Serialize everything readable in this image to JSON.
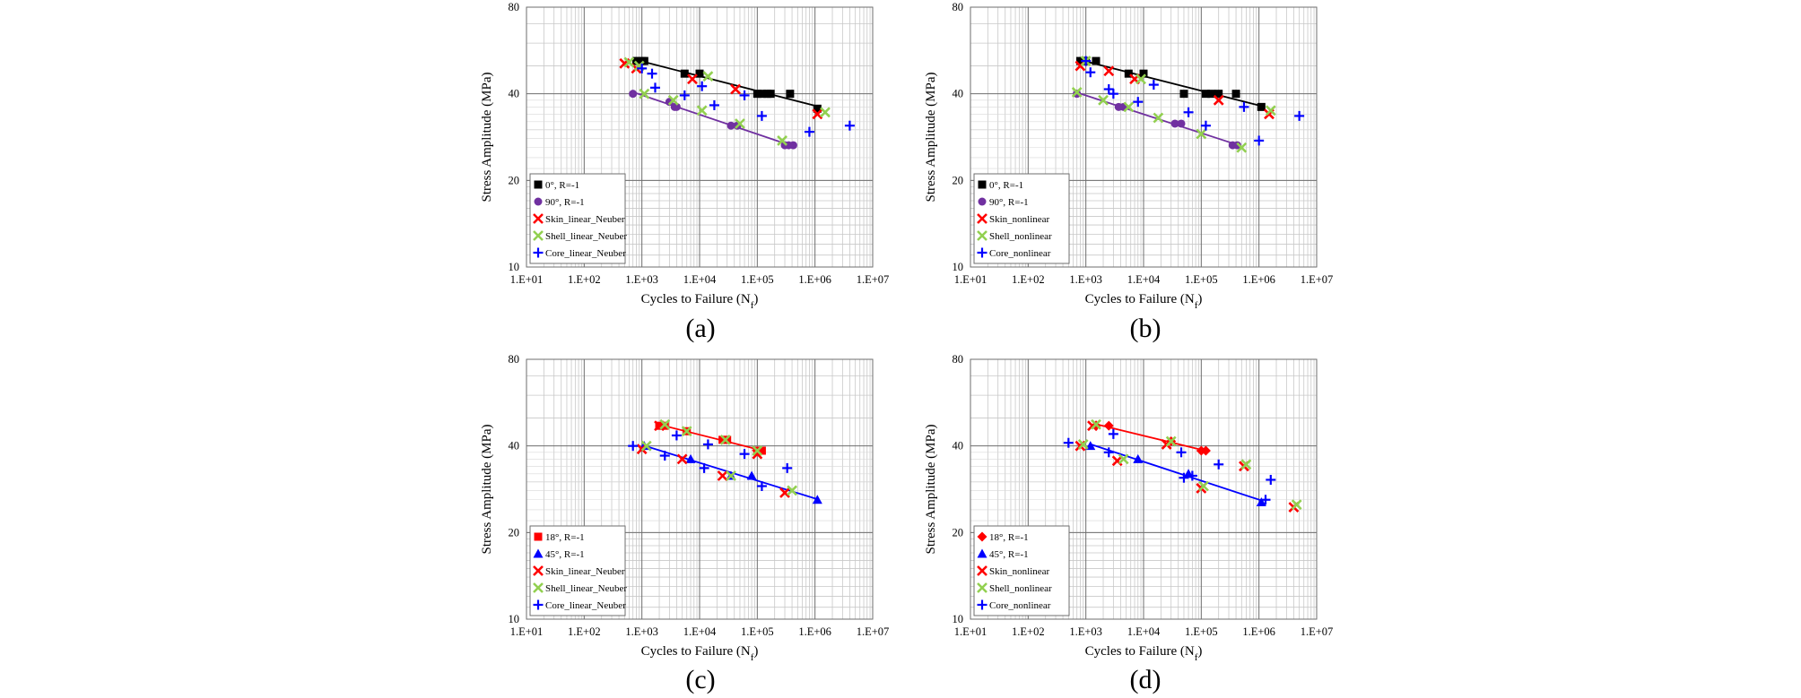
{
  "captions": [
    "(a)",
    "(b)",
    "(c)",
    "(d)"
  ],
  "chart_data": [
    {
      "type": "scatter",
      "panel": "(a)",
      "xlabel": "Cycles  to Failure (N",
      "xlabel_sub": "f",
      "xlabel_end": ")",
      "ylabel": "Stress Amplitude  (MPa)",
      "xscale": "log",
      "yscale": "log",
      "xlim": [
        10,
        10000000
      ],
      "ylim": [
        10,
        80
      ],
      "xticks": [
        10,
        100,
        1000,
        10000,
        100000,
        1000000,
        10000000
      ],
      "xtick_labels": [
        "1.E+01",
        "1.E+02",
        "1.E+03",
        "1.E+04",
        "1.E+05",
        "1.E+06",
        "1.E+07"
      ],
      "yticks": [
        10,
        20,
        40,
        80
      ],
      "ytick_labels": [
        "10",
        "20",
        "40",
        "80"
      ],
      "grid": true,
      "legend_position": "bottom-left",
      "series": [
        {
          "name": "0°, R=-1",
          "marker": "square",
          "color": "#000000",
          "trendline": true,
          "x": [
            800,
            900,
            1000,
            1100,
            5500,
            10000,
            100000,
            120000,
            150000,
            170000,
            370000,
            1100000
          ],
          "y": [
            52,
            52,
            52,
            52,
            47,
            47,
            40,
            40,
            40,
            40,
            40,
            35.5
          ]
        },
        {
          "name": "90°, R=-1",
          "marker": "circle",
          "color": "#7030a0",
          "trendline": true,
          "x": [
            700,
            3000,
            3700,
            4000,
            35000,
            45000,
            300000,
            350000,
            420000
          ],
          "y": [
            40,
            37.5,
            36,
            36,
            31,
            31,
            26.5,
            26.5,
            26.5
          ]
        },
        {
          "name": "Skin_linear_Neuber",
          "marker": "x",
          "color": "#ff0000",
          "trendline": false,
          "x": [
            500,
            800,
            7500,
            42000,
            1100000
          ],
          "y": [
            51,
            49,
            45,
            41.5,
            34
          ]
        },
        {
          "name": "Shell_linear_Neuber",
          "marker": "x",
          "color": "#92d050",
          "trendline": false,
          "x": [
            600,
            900,
            1100,
            3500,
            11000,
            14000,
            50000,
            270000,
            1500000
          ],
          "y": [
            51.5,
            50,
            40,
            38,
            35,
            46,
            31.5,
            27.5,
            34.5
          ]
        },
        {
          "name": "Core_linear_Neuber",
          "marker": "plus",
          "color": "#0000ff",
          "trendline": false,
          "x": [
            1000,
            1500,
            1700,
            5500,
            11000,
            18000,
            60000,
            120000,
            800000,
            4000000
          ],
          "y": [
            49,
            47,
            42,
            39.5,
            42.5,
            36.5,
            39.5,
            33.5,
            29.5,
            31
          ]
        }
      ]
    },
    {
      "type": "scatter",
      "panel": "(b)",
      "xlabel": "Cycles  to Failure (N",
      "xlabel_sub": "f",
      "xlabel_end": ")",
      "ylabel": "Stress Amplitude  (MPa)",
      "xscale": "log",
      "yscale": "log",
      "xlim": [
        10,
        10000000
      ],
      "ylim": [
        10,
        80
      ],
      "xticks": [
        10,
        100,
        1000,
        10000,
        100000,
        1000000,
        10000000
      ],
      "xtick_labels": [
        "1.E+01",
        "1.E+02",
        "1.E+03",
        "1.E+04",
        "1.E+05",
        "1.E+06",
        "1.E+07"
      ],
      "yticks": [
        10,
        20,
        40,
        80
      ],
      "ytick_labels": [
        "10",
        "20",
        "40",
        "80"
      ],
      "grid": true,
      "legend_position": "bottom-left",
      "series": [
        {
          "name": "0°, R=-1",
          "marker": "square",
          "color": "#000000",
          "trendline": true,
          "x": [
            800,
            900,
            1000,
            1500,
            5500,
            10000,
            50000,
            120000,
            150000,
            200000,
            400000,
            1100000
          ],
          "y": [
            52,
            52,
            52,
            52,
            47,
            47,
            40,
            40,
            40,
            40,
            40,
            36
          ]
        },
        {
          "name": "90°, R=-1",
          "marker": "circle",
          "color": "#7030a0",
          "trendline": true,
          "x": [
            700,
            3700,
            4500,
            35000,
            45000,
            350000,
            420000
          ],
          "y": [
            40,
            36,
            36,
            31.5,
            31.5,
            26.5,
            26.5
          ]
        },
        {
          "name": "Skin_nonlinear",
          "marker": "x",
          "color": "#ff0000",
          "trendline": false,
          "x": [
            800,
            2500,
            7000,
            200000,
            1500000
          ],
          "y": [
            50,
            48,
            45,
            38,
            34
          ]
        },
        {
          "name": "Shell_nonlinear",
          "marker": "x",
          "color": "#92d050",
          "trendline": false,
          "x": [
            700,
            1000,
            2000,
            5500,
            9000,
            18000,
            100000,
            500000,
            1600000
          ],
          "y": [
            40.5,
            52,
            38,
            36,
            45,
            33,
            29,
            26,
            35
          ]
        },
        {
          "name": "Core_nonlinear",
          "marker": "plus",
          "color": "#0000ff",
          "trendline": false,
          "x": [
            1000,
            1200,
            2500,
            3000,
            8000,
            15000,
            60000,
            120000,
            550000,
            1000000,
            5000000
          ],
          "y": [
            52,
            47.5,
            41.5,
            40,
            37.5,
            43,
            34.5,
            31,
            36,
            27.5,
            33.5
          ]
        }
      ]
    },
    {
      "type": "scatter",
      "panel": "(c)",
      "xlabel": "Cycles  to Failure (N",
      "xlabel_sub": "f",
      "xlabel_end": ")",
      "ylabel": "Stress Amplitude  (MPa)",
      "xscale": "log",
      "yscale": "log",
      "xlim": [
        10,
        10000000
      ],
      "ylim": [
        10,
        80
      ],
      "xticks": [
        10,
        100,
        1000,
        10000,
        100000,
        1000000,
        10000000
      ],
      "xtick_labels": [
        "1.E+01",
        "1.E+02",
        "1.E+03",
        "1.E+04",
        "1.E+05",
        "1.E+06",
        "1.E+07"
      ],
      "yticks": [
        10,
        20,
        40,
        80
      ],
      "ytick_labels": [
        "10",
        "20",
        "40",
        "80"
      ],
      "grid": true,
      "legend_position": "bottom-left",
      "series": [
        {
          "name": "18°, R=-1",
          "marker": "square",
          "color": "#ff0000",
          "trendline": true,
          "x": [
            2000,
            2500,
            6000,
            25000,
            30000,
            100000,
            120000
          ],
          "y": [
            47,
            47,
            45,
            42,
            42,
            38.5,
            38.5
          ]
        },
        {
          "name": "45°, R=-1",
          "marker": "triangle",
          "color": "#0000ff",
          "trendline": true,
          "x": [
            1100,
            7000,
            35000,
            80000,
            1100000
          ],
          "y": [
            40,
            36,
            31.5,
            31.5,
            26
          ]
        },
        {
          "name": "Skin_linear_Neuber",
          "marker": "x",
          "color": "#ff0000",
          "trendline": false,
          "x": [
            1000,
            2000,
            5000,
            25000,
            100000,
            300000
          ],
          "y": [
            39,
            47,
            36,
            31.5,
            37.5,
            27.5
          ]
        },
        {
          "name": "Shell_linear_Neuber",
          "marker": "x",
          "color": "#92d050",
          "trendline": false,
          "x": [
            1200,
            2500,
            6000,
            28000,
            35000,
            100000,
            400000
          ],
          "y": [
            40,
            47.5,
            45,
            42,
            31.5,
            38.5,
            28
          ]
        },
        {
          "name": "Core_linear_Neuber",
          "marker": "plus",
          "color": "#0000ff",
          "trendline": false,
          "x": [
            700,
            2500,
            4000,
            12000,
            14000,
            60000,
            120000,
            330000
          ],
          "y": [
            40,
            37,
            43.5,
            33.5,
            40.5,
            37.5,
            29,
            33.5
          ]
        }
      ]
    },
    {
      "type": "scatter",
      "panel": "(d)",
      "xlabel": "Cycles  to Failure (N",
      "xlabel_sub": "f",
      "xlabel_end": ")",
      "ylabel": "Stress Amplitude  (MPa)",
      "xscale": "log",
      "yscale": "log",
      "xlim": [
        10,
        10000000
      ],
      "ylim": [
        10,
        80
      ],
      "xticks": [
        10,
        100,
        1000,
        10000,
        100000,
        1000000,
        10000000
      ],
      "xtick_labels": [
        "1.E+01",
        "1.E+02",
        "1.E+03",
        "1.E+04",
        "1.E+05",
        "1.E+06",
        "1.E+07"
      ],
      "yticks": [
        10,
        20,
        40,
        80
      ],
      "ytick_labels": [
        "10",
        "20",
        "40",
        "80"
      ],
      "grid": true,
      "legend_position": "bottom-left",
      "series": [
        {
          "name": "18°, R=-1",
          "marker": "diamond",
          "color": "#ff0000",
          "trendline": true,
          "x": [
            1500,
            2500,
            30000,
            100000,
            120000
          ],
          "y": [
            47,
            47,
            41.5,
            38.5,
            38.5
          ]
        },
        {
          "name": "45°, R=-1",
          "marker": "triangle",
          "color": "#0000ff",
          "trendline": true,
          "x": [
            1200,
            8000,
            60000,
            1100000
          ],
          "y": [
            40,
            36,
            32,
            25.5
          ]
        },
        {
          "name": "Skin_nonlinear",
          "marker": "x",
          "color": "#ff0000",
          "trendline": false,
          "x": [
            800,
            1300,
            3500,
            25000,
            100000,
            550000,
            4000000
          ],
          "y": [
            40,
            47,
            35.5,
            40.5,
            28.5,
            34,
            24.5
          ]
        },
        {
          "name": "Shell_nonlinear",
          "marker": "x",
          "color": "#92d050",
          "trendline": false,
          "x": [
            900,
            1500,
            4500,
            30000,
            110000,
            600000,
            4500000
          ],
          "y": [
            40.5,
            47.5,
            36,
            41.5,
            29,
            34.5,
            25
          ]
        },
        {
          "name": "Core_nonlinear",
          "marker": "plus",
          "color": "#0000ff",
          "trendline": false,
          "x": [
            500,
            2500,
            3000,
            45000,
            50000,
            70000,
            200000,
            1300000,
            1600000
          ],
          "y": [
            41,
            38,
            44,
            38,
            31,
            31.5,
            34.5,
            26,
            30.5
          ]
        }
      ]
    }
  ]
}
